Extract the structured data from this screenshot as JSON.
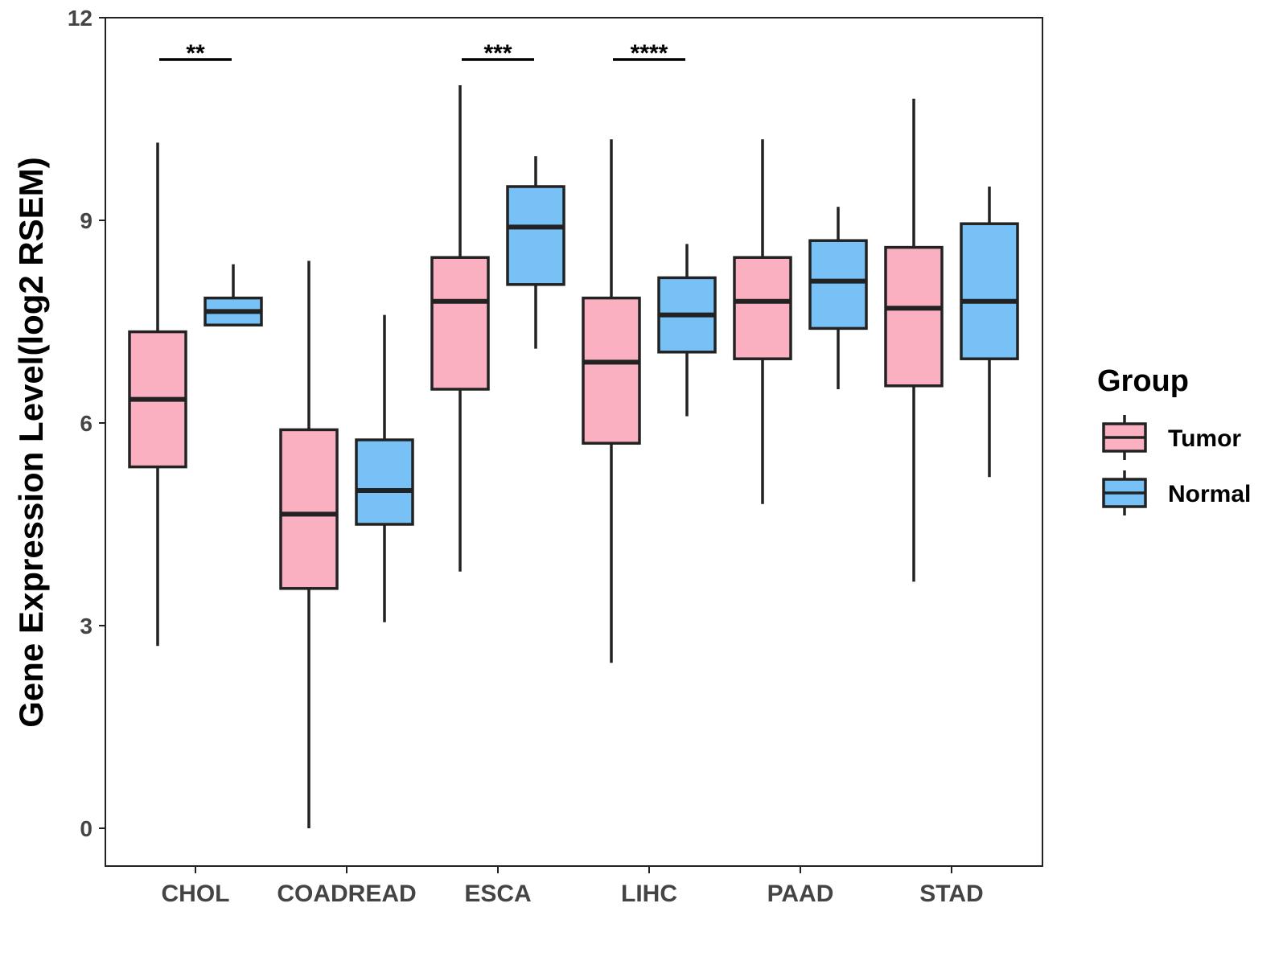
{
  "chart_data": {
    "type": "boxplot",
    "title": "",
    "xlabel": "",
    "ylabel": "Gene Expression Level(log2 RSEM)",
    "ylim": [
      -0.55,
      12
    ],
    "yticks": [
      0,
      3,
      6,
      9,
      12
    ],
    "grid": false,
    "categories": [
      "CHOL",
      "COADREAD",
      "ESCA",
      "LIHC",
      "PAAD",
      "STAD"
    ],
    "legend": {
      "title": "Group",
      "position": "right",
      "entries": [
        {
          "name": "Tumor",
          "color": "#FBB0C1"
        },
        {
          "name": "Normal",
          "color": "#77C1F7"
        }
      ]
    },
    "series": [
      {
        "name": "Tumor",
        "color": "#FBB0C1",
        "boxes": [
          {
            "category": "CHOL",
            "min": 2.7,
            "q1": 5.35,
            "median": 6.35,
            "q3": 7.35,
            "max": 10.15
          },
          {
            "category": "COADREAD",
            "min": 0.0,
            "q1": 3.55,
            "median": 4.65,
            "q3": 5.9,
            "max": 8.4
          },
          {
            "category": "ESCA",
            "min": 3.8,
            "q1": 6.5,
            "median": 7.8,
            "q3": 8.45,
            "max": 11.0
          },
          {
            "category": "LIHC",
            "min": 2.45,
            "q1": 5.7,
            "median": 6.9,
            "q3": 7.85,
            "max": 10.2
          },
          {
            "category": "PAAD",
            "min": 4.8,
            "q1": 6.95,
            "median": 7.8,
            "q3": 8.45,
            "max": 10.2
          },
          {
            "category": "STAD",
            "min": 3.65,
            "q1": 6.55,
            "median": 7.7,
            "q3": 8.6,
            "max": 10.8
          }
        ]
      },
      {
        "name": "Normal",
        "color": "#77C1F7",
        "boxes": [
          {
            "category": "CHOL",
            "min": 7.45,
            "q1": 7.45,
            "median": 7.65,
            "q3": 7.85,
            "max": 8.35
          },
          {
            "category": "COADREAD",
            "min": 3.05,
            "q1": 4.5,
            "median": 5.0,
            "q3": 5.75,
            "max": 7.6
          },
          {
            "category": "ESCA",
            "min": 7.1,
            "q1": 8.05,
            "median": 8.9,
            "q3": 9.5,
            "max": 9.95
          },
          {
            "category": "LIHC",
            "min": 6.1,
            "q1": 7.05,
            "median": 7.6,
            "q3": 8.15,
            "max": 8.65
          },
          {
            "category": "PAAD",
            "min": 6.5,
            "q1": 7.4,
            "median": 8.1,
            "q3": 8.7,
            "max": 9.2
          },
          {
            "category": "STAD",
            "min": 5.2,
            "q1": 6.95,
            "median": 7.8,
            "q3": 8.95,
            "max": 9.5
          }
        ]
      }
    ],
    "annotations": [
      {
        "category": "CHOL",
        "text": "**"
      },
      {
        "category": "ESCA",
        "text": "***"
      },
      {
        "category": "LIHC",
        "text": "****"
      }
    ]
  }
}
